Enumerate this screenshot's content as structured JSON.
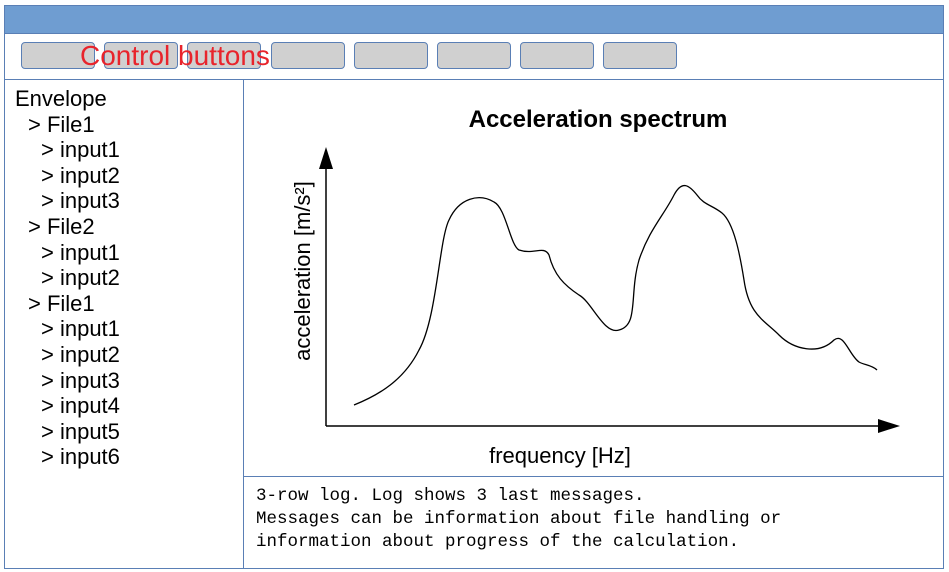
{
  "toolbar": {
    "label": "Control buttons",
    "button_count": 8
  },
  "tree": {
    "items": [
      {
        "level": "root",
        "label": "Envelope"
      },
      {
        "level": "file",
        "label": "> File1"
      },
      {
        "level": "input",
        "label": "> input1"
      },
      {
        "level": "input",
        "label": "> input2"
      },
      {
        "level": "input",
        "label": "> input3"
      },
      {
        "level": "file",
        "label": "> File2"
      },
      {
        "level": "input",
        "label": "> input1"
      },
      {
        "level": "input",
        "label": "> input2"
      },
      {
        "level": "file",
        "label": "> File1"
      },
      {
        "level": "input",
        "label": "> input1"
      },
      {
        "level": "input",
        "label": "> input2"
      },
      {
        "level": "input",
        "label": "> input3"
      },
      {
        "level": "input",
        "label": "> input4"
      },
      {
        "level": "input",
        "label": "> input5"
      },
      {
        "level": "input",
        "label": "> input6"
      }
    ]
  },
  "chart": {
    "title": "Acceleration spectrum",
    "xlabel": "frequency [Hz]",
    "ylabel": "acceleration [m/s²]"
  },
  "log": {
    "lines": [
      "3-row log. Log shows 3 last messages.",
      "Messages can be information about file handling or",
      "information about progress of the calculation."
    ]
  },
  "colors": {
    "title_bar": "#6f9dd1",
    "border": "#5a7fb5",
    "button_fill": "#d0d0d0",
    "annotation_text": "#e8242c"
  }
}
